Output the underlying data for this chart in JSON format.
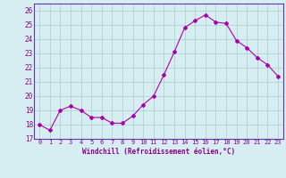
{
  "x": [
    0,
    1,
    2,
    3,
    4,
    5,
    6,
    7,
    8,
    9,
    10,
    11,
    12,
    13,
    14,
    15,
    16,
    17,
    18,
    19,
    20,
    21,
    22,
    23
  ],
  "y": [
    18.0,
    17.6,
    19.0,
    19.3,
    19.0,
    18.5,
    18.5,
    18.1,
    18.1,
    18.6,
    19.4,
    20.0,
    21.5,
    23.1,
    24.8,
    25.3,
    25.7,
    25.2,
    25.1,
    23.9,
    23.4,
    22.7,
    22.2,
    21.4
  ],
  "line_color": "#aa00aa",
  "marker": "D",
  "marker_size": 2,
  "bg_color": "#d6eef2",
  "grid_color": "#aacccc",
  "xlabel": "Windchill (Refroidissement éolien,°C)",
  "xlabel_color": "#880088",
  "tick_color": "#880088",
  "ylim": [
    17,
    26.5
  ],
  "xlim": [
    -0.5,
    23.5
  ],
  "yticks": [
    17,
    18,
    19,
    20,
    21,
    22,
    23,
    24,
    25,
    26
  ],
  "xticks": [
    0,
    1,
    2,
    3,
    4,
    5,
    6,
    7,
    8,
    9,
    10,
    11,
    12,
    13,
    14,
    15,
    16,
    17,
    18,
    19,
    20,
    21,
    22,
    23
  ]
}
